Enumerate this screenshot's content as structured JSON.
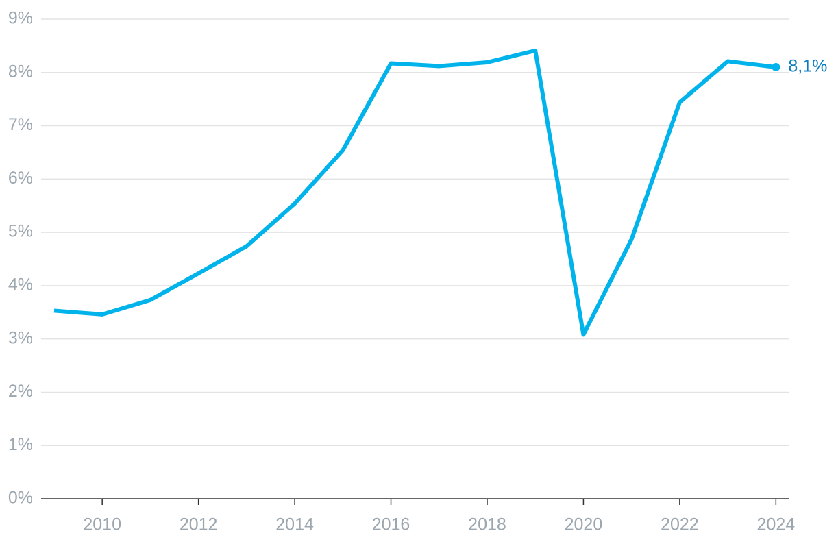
{
  "chart_data": {
    "type": "line",
    "x": [
      2009,
      2010,
      2011,
      2012,
      2013,
      2014,
      2015,
      2016,
      2017,
      2018,
      2019,
      2020,
      2021,
      2022,
      2023,
      2024
    ],
    "series": [
      {
        "color": "#00b3ea",
        "values": [
          3.53,
          3.46,
          3.73,
          4.23,
          4.74,
          5.54,
          6.54,
          8.17,
          8.12,
          8.19,
          8.41,
          3.08,
          4.87,
          7.44,
          8.21,
          8.1
        ],
        "value_labels": [
          null,
          null,
          null,
          null,
          null,
          null,
          null,
          null,
          null,
          null,
          null,
          null,
          null,
          null,
          null,
          "8,1%"
        ]
      }
    ],
    "xlim": [
      2008.73,
      2024.28
    ],
    "xticks": [
      2010,
      2012,
      2014,
      2016,
      2018,
      2020,
      2022,
      2024
    ],
    "ylim": [
      0,
      9
    ],
    "yticks": [
      {
        "value": 0,
        "label": "0%"
      },
      {
        "value": 1,
        "label": "1%"
      },
      {
        "value": 2,
        "label": "2%"
      },
      {
        "value": 3,
        "label": "3%"
      },
      {
        "value": 4,
        "label": "4%"
      },
      {
        "value": 5,
        "label": "5%"
      },
      {
        "value": 6,
        "label": "6%"
      },
      {
        "value": 7,
        "label": "7%"
      },
      {
        "value": 8,
        "label": "8%"
      },
      {
        "value": 9,
        "label": "9%"
      }
    ],
    "grid": true
  }
}
